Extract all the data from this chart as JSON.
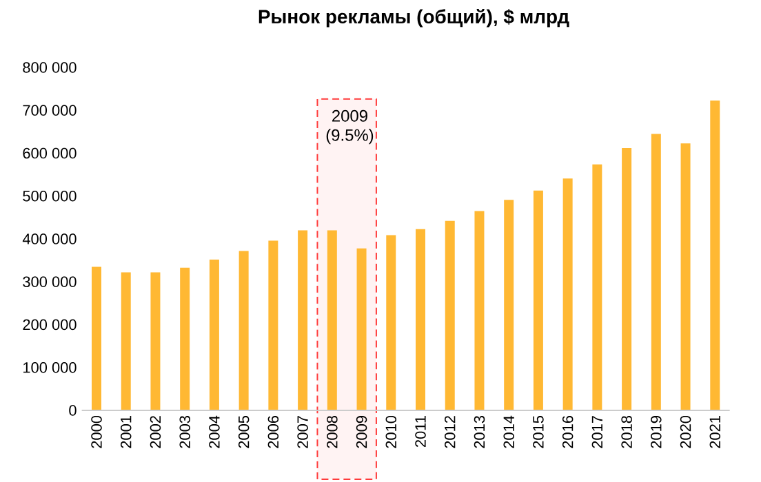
{
  "chart_data": {
    "type": "bar",
    "title": "Рынок рекламы (общий), $ млрд",
    "categories": [
      "2000",
      "2001",
      "2002",
      "2003",
      "2004",
      "2005",
      "2006",
      "2007",
      "2008",
      "2009",
      "2010",
      "2011",
      "2012",
      "2013",
      "2014",
      "2015",
      "2016",
      "2017",
      "2018",
      "2019",
      "2020",
      "2021"
    ],
    "values": [
      335000,
      322000,
      322000,
      333000,
      352000,
      372000,
      396000,
      420000,
      420000,
      378000,
      409000,
      423000,
      442000,
      465000,
      491000,
      513000,
      541000,
      574000,
      612000,
      645000,
      623000,
      723000
    ],
    "color": "#ffb833",
    "ylim": [
      0,
      800000
    ],
    "yticks": [
      {
        "value": 0,
        "label": "0"
      },
      {
        "value": 100000,
        "label": "100 000"
      },
      {
        "value": 200000,
        "label": "200 000"
      },
      {
        "value": 300000,
        "label": "300 000"
      },
      {
        "value": 400000,
        "label": "400 000"
      },
      {
        "value": 500000,
        "label": "500 000"
      },
      {
        "value": 600000,
        "label": "600 000"
      },
      {
        "value": 700000,
        "label": "700 000"
      },
      {
        "value": 800000,
        "label": "800 000"
      }
    ],
    "bands": [
      {
        "axis": "x",
        "from": "2008",
        "to": "2009",
        "label": "2009 (9.5%)",
        "color": "#ff3b3b"
      }
    ],
    "grid": false
  }
}
